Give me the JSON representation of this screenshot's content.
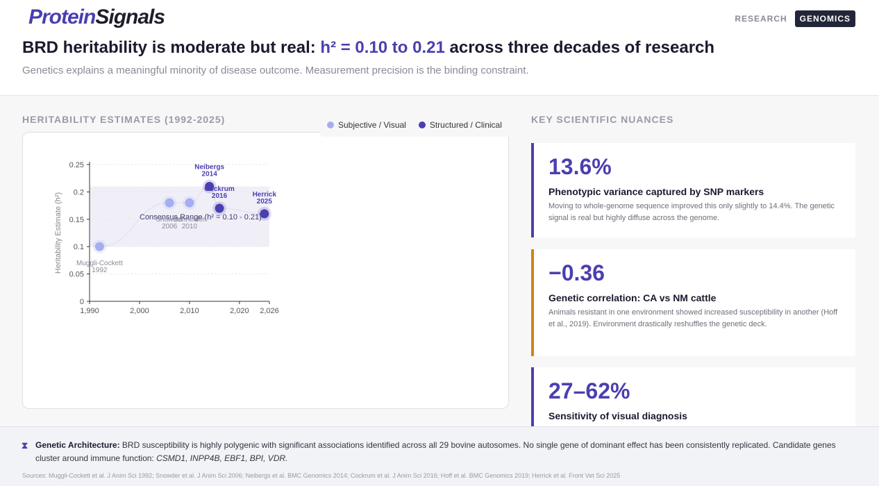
{
  "brand": {
    "part1": "Protein",
    "part2": "Signals"
  },
  "nav": {
    "tab1": "RESEARCH",
    "tab2": "GENOMICS"
  },
  "headline": {
    "pre": "BRD heritability is moderate but real: ",
    "accent": "h² = 0.10 to 0.21",
    "post": " across three decades of research"
  },
  "subhead": "Genetics explains a meaningful minority of disease outcome. Measurement precision is the binding constraint.",
  "chart_section_title": "HERITABILITY ESTIMATES (1992-2025)",
  "nuances_title": "KEY SCIENTIFIC NUANCES",
  "legend": {
    "subjective": "Subjective / Visual",
    "structured": "Structured / Clinical"
  },
  "colors": {
    "accent": "#4a3fb0",
    "subjective": "#a4aef0",
    "structured": "#4a3fb0",
    "orange": "#d2840e"
  },
  "chart_data": {
    "type": "scatter",
    "title": "Heritability Estimates (1992-2025)",
    "xlabel": "",
    "ylabel": "Heritability Estimate (h²)",
    "xlim": [
      1990,
      2026
    ],
    "ylim": [
      0,
      0.25
    ],
    "xticks": [
      1990,
      2000,
      2010,
      2020,
      2026
    ],
    "xtick_labels": [
      "1,990",
      "2,000",
      "2,010",
      "2,020",
      "2,026"
    ],
    "yticks": [
      0,
      0.05,
      0.1,
      0.15,
      0.2,
      0.25
    ],
    "ytick_labels": [
      "0",
      "0.05",
      "0.1",
      "0.15",
      "0.2",
      "0.25"
    ],
    "band": {
      "y0": 0.1,
      "y1": 0.21,
      "label": "Consensus Range (h² = 0.10 - 0.21)"
    },
    "points": [
      {
        "author": "Muggli-Cockett",
        "year": "1992",
        "x": 1992,
        "y": 0.1,
        "kind": "subjective",
        "label_pos": "below"
      },
      {
        "author": "Snowder",
        "year": "2006",
        "x": 2006,
        "y": 0.18,
        "kind": "subjective",
        "label_pos": "below"
      },
      {
        "author": "Schneider",
        "year": "2010",
        "x": 2010,
        "y": 0.18,
        "kind": "subjective",
        "label_pos": "below"
      },
      {
        "author": "Neibergs",
        "year": "2014",
        "x": 2014,
        "y": 0.21,
        "kind": "structured",
        "label_pos": "above"
      },
      {
        "author": "Cockrum",
        "year": "2016",
        "x": 2016,
        "y": 0.17,
        "kind": "structured",
        "label_pos": "above"
      },
      {
        "author": "Herrick",
        "year": "2025",
        "x": 2025,
        "y": 0.16,
        "kind": "structured",
        "label_pos": "above"
      }
    ]
  },
  "cards": [
    {
      "value": "13.6%",
      "title": "Phenotypic variance captured by SNP markers",
      "desc": "Moving to whole-genome sequence improved this only slightly to 14.4%. The genetic signal is real but highly diffuse across the genome."
    },
    {
      "value": "−0.36",
      "title": "Genetic correlation: CA vs NM cattle",
      "desc": "Animals resistant in one environment showed increased susceptibility in another (Hoff et al., 2019). Environment drastically reshuffles the genetic deck."
    },
    {
      "value": "27–62%",
      "title": "Sensitivity of visual diagnosis"
    }
  ],
  "footer": {
    "icon": "dna-icon",
    "label": "Genetic Architecture:",
    "text": " BRD susceptibility is highly polygenic with significant associations identified across all 29 bovine autosomes. No single gene of dominant effect has been consistently replicated. Candidate genes cluster around immune function: ",
    "genes": "CSMD1, INPP4B, EBF1, BPI, VDR.",
    "sources": "Sources: Muggli-Cockett et al. J Anim Sci 1992; Snowder et al. J Anim Sci 2006; Neibergs et al. BMC Genomics 2014; Cockrum et al. J Anim Sci 2016; Hoff et al. BMC Genomics 2019; Herrick et al. Front Vet Sci 2025"
  }
}
